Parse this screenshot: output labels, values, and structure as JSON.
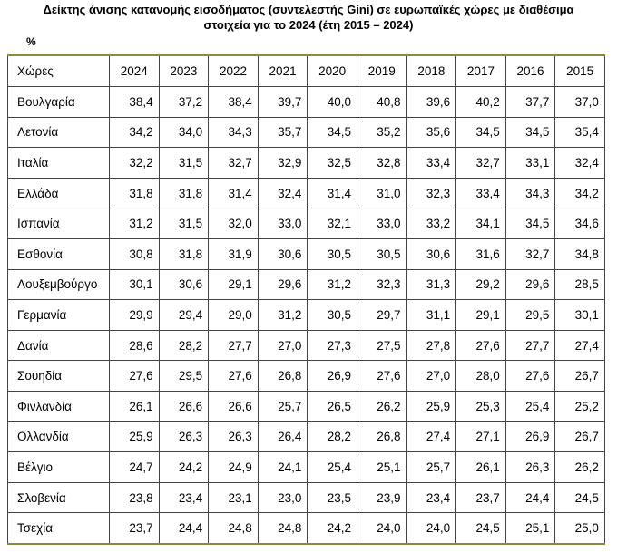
{
  "title": {
    "line1": "Δείκτης άνισης κατανομής εισοδήματος (συντελεστής Gini) σε ευρωπαϊκές χώρες με διαθέσιμα",
    "line2": "στοιχεία για το 2024 (έτη 2015 – 2024)"
  },
  "unit": "%",
  "table": {
    "headers": [
      "Χώρες",
      "2024",
      "2023",
      "2022",
      "2021",
      "2020",
      "2019",
      "2018",
      "2017",
      "2016",
      "2015"
    ],
    "rows": [
      [
        "Βουλγαρία",
        "38,4",
        "37,2",
        "38,4",
        "39,7",
        "40,0",
        "40,8",
        "39,6",
        "40,2",
        "37,7",
        "37,0"
      ],
      [
        "Λετονία",
        "34,2",
        "34,0",
        "34,3",
        "35,7",
        "34,5",
        "35,2",
        "35,6",
        "34,5",
        "34,5",
        "35,4"
      ],
      [
        "Ιταλία",
        "32,2",
        "31,5",
        "32,7",
        "32,9",
        "32,5",
        "32,8",
        "33,4",
        "32,7",
        "33,1",
        "32,4"
      ],
      [
        "Ελλάδα",
        "31,8",
        "31,8",
        "31,4",
        "32,4",
        "31,4",
        "31,0",
        "32,3",
        "33,4",
        "34,3",
        "34,2"
      ],
      [
        "Ισπανία",
        "31,2",
        "31,5",
        "32,0",
        "33,0",
        "32,1",
        "33,0",
        "33,2",
        "34,1",
        "34,5",
        "34,6"
      ],
      [
        "Εσθονία",
        "30,8",
        "31,8",
        "31,9",
        "30,6",
        "30,5",
        "30,5",
        "30,6",
        "31,6",
        "32,7",
        "34,8"
      ],
      [
        "Λουξεμβούργο",
        "30,1",
        "30,6",
        "29,1",
        "29,6",
        "31,2",
        "32,3",
        "31,3",
        "29,2",
        "29,6",
        "28,5"
      ],
      [
        "Γερμανία",
        "29,9",
        "29,4",
        "29,0",
        "31,2",
        "30,5",
        "29,7",
        "31,1",
        "29,1",
        "29,5",
        "30,1"
      ],
      [
        "Δανία",
        "28,6",
        "28,2",
        "27,7",
        "27,0",
        "27,3",
        "27,5",
        "27,8",
        "27,6",
        "27,7",
        "27,4"
      ],
      [
        "Σουηδία",
        "27,6",
        "29,5",
        "27,6",
        "26,8",
        "26,9",
        "27,6",
        "27,0",
        "28,0",
        "27,6",
        "26,7"
      ],
      [
        "Φινλανδία",
        "26,1",
        "26,6",
        "26,6",
        "25,7",
        "26,5",
        "26,2",
        "25,9",
        "25,3",
        "25,4",
        "25,2"
      ],
      [
        "Ολλανδία",
        "25,9",
        "26,3",
        "26,3",
        "26,4",
        "28,2",
        "26,8",
        "27,4",
        "27,1",
        "26,9",
        "26,7"
      ],
      [
        "Βέλγιο",
        "24,7",
        "24,2",
        "24,9",
        "24,1",
        "25,4",
        "25,1",
        "25,7",
        "26,1",
        "26,3",
        "26,2"
      ],
      [
        "Σλοβενία",
        "23,8",
        "23,4",
        "23,1",
        "23,0",
        "23,5",
        "23,9",
        "23,4",
        "23,7",
        "24,4",
        "24,5"
      ],
      [
        "Τσεχία",
        "23,7",
        "24,4",
        "24,8",
        "24,8",
        "24,2",
        "24,0",
        "24,0",
        "24,5",
        "25,1",
        "25,0"
      ]
    ]
  }
}
